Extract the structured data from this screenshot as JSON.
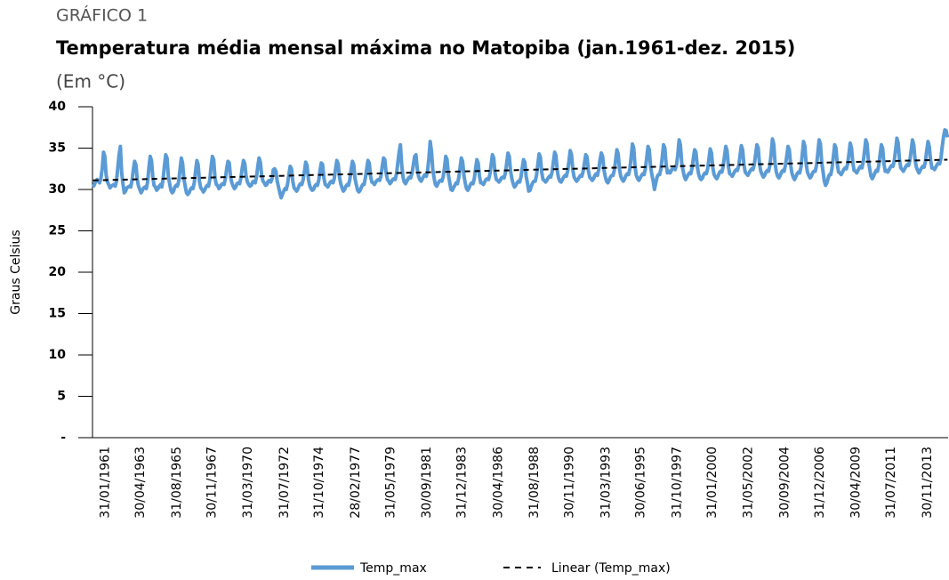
{
  "chart_data": {
    "type": "line",
    "label": "GRÁFICO 1",
    "title": "Temperatura média mensal máxima no Matopiba (jan.1961-dez. 2015)",
    "subtitle": "(Em °C)",
    "y_label": "Graus Celsius",
    "ylim": [
      0,
      40
    ],
    "yticks": [
      {
        "value": 0,
        "label": "-"
      },
      5,
      10,
      15,
      20,
      25,
      30,
      35,
      40
    ],
    "legend": "bottom",
    "categories": [
      "31/01/1961",
      null,
      null,
      null,
      null,
      null,
      null,
      null,
      null,
      null,
      null,
      null,
      null,
      null,
      null,
      null,
      null,
      null,
      null,
      null,
      null,
      null,
      null,
      null,
      null,
      null,
      null,
      "30/04/1963",
      null,
      null,
      null,
      null,
      null,
      null,
      null,
      null,
      null,
      null,
      null,
      null,
      null,
      null,
      null,
      null,
      null,
      null,
      null,
      null,
      null,
      null,
      null,
      null,
      null,
      null,
      null,
      "31/08/1965",
      null,
      null,
      null,
      null,
      null,
      null,
      null,
      null,
      null,
      null,
      null,
      null,
      null,
      null,
      null,
      null,
      null,
      null,
      null,
      null,
      null,
      null,
      null,
      null,
      null,
      null,
      "30/11/1967",
      null,
      null,
      null,
      null,
      null,
      null,
      null,
      null,
      null,
      null,
      null,
      null,
      null,
      null,
      null,
      null,
      null,
      null,
      null,
      null,
      null,
      null,
      null,
      null,
      null,
      null,
      null,
      "31/03/1970",
      null,
      null,
      null,
      null,
      null,
      null,
      null,
      null,
      null,
      null,
      null,
      null,
      null,
      null,
      null,
      null,
      null,
      null,
      null,
      null,
      null,
      null,
      null,
      null,
      null,
      null,
      null,
      "31/07/1972",
      null,
      null,
      null,
      null,
      null,
      null,
      null,
      null,
      null,
      null,
      null,
      null,
      null,
      null,
      null,
      null,
      null,
      null,
      null,
      null,
      null,
      null,
      null,
      null,
      null,
      null,
      "31/10/1974",
      null,
      null,
      null,
      null,
      null,
      null,
      null,
      null,
      null,
      null,
      null,
      null,
      null,
      null,
      null,
      null,
      null,
      null,
      null,
      null,
      null,
      null,
      null,
      null,
      null,
      null,
      null,
      "28/02/1977",
      null,
      null,
      null,
      null,
      null,
      null,
      null,
      null,
      null,
      null,
      null,
      null,
      null,
      null,
      null,
      null,
      null,
      null,
      null,
      null,
      null,
      null,
      null,
      null,
      null,
      null,
      "31/05/1979",
      null,
      null,
      null,
      null,
      null,
      null,
      null,
      null,
      null,
      null,
      null,
      null,
      null,
      null,
      null,
      null,
      null,
      null,
      null,
      null,
      null,
      null,
      null,
      null,
      null,
      null,
      null,
      "30/09/1981",
      null,
      null,
      null,
      null,
      null,
      null,
      null,
      null,
      null,
      null,
      null,
      null,
      null,
      null,
      null,
      null,
      null,
      null,
      null,
      null,
      null,
      null,
      null,
      null,
      null,
      null,
      "31/12/1983",
      null,
      null,
      null,
      null,
      null,
      null,
      null,
      null,
      null,
      null,
      null,
      null,
      null,
      null,
      null,
      null,
      null,
      null,
      null,
      null,
      null,
      null,
      null,
      null,
      null,
      null,
      null,
      "30/04/1986",
      null,
      null,
      null,
      null,
      null,
      null,
      null,
      null,
      null,
      null,
      null,
      null,
      null,
      null,
      null,
      null,
      null,
      null,
      null,
      null,
      null,
      null,
      null,
      null,
      null,
      null,
      null,
      "31/08/1988",
      null,
      null,
      null,
      null,
      null,
      null,
      null,
      null,
      null,
      null,
      null,
      null,
      null,
      null,
      null,
      null,
      null,
      null,
      null,
      null,
      null,
      null,
      null,
      null,
      null,
      null,
      "30/11/1990",
      null,
      null,
      null,
      null,
      null,
      null,
      null,
      null,
      null,
      null,
      null,
      null,
      null,
      null,
      null,
      null,
      null,
      null,
      null,
      null,
      null,
      null,
      null,
      null,
      null,
      null,
      null,
      "31/03/1993",
      null,
      null,
      null,
      null,
      null,
      null,
      null,
      null,
      null,
      null,
      null,
      null,
      null,
      null,
      null,
      null,
      null,
      null,
      null,
      null,
      null,
      null,
      null,
      null,
      null,
      null,
      "30/06/1995",
      null,
      null,
      null,
      null,
      null,
      null,
      null,
      null,
      null,
      null,
      null,
      null,
      null,
      null,
      null,
      null,
      null,
      null,
      null,
      null,
      null,
      null,
      null,
      null,
      null,
      null,
      null,
      "31/10/1997",
      null,
      null,
      null,
      null,
      null,
      null,
      null,
      null,
      null,
      null,
      null,
      null,
      null,
      null,
      null,
      null,
      null,
      null,
      null,
      null,
      null,
      null,
      null,
      null,
      null,
      null,
      "31/01/2000",
      null,
      null,
      null,
      null,
      null,
      null,
      null,
      null,
      null,
      null,
      null,
      null,
      null,
      null,
      null,
      null,
      null,
      null,
      null,
      null,
      null,
      null,
      null,
      null,
      null,
      null,
      null,
      "31/05/2002",
      null,
      null,
      null,
      null,
      null,
      null,
      null,
      null,
      null,
      null,
      null,
      null,
      null,
      null,
      null,
      null,
      null,
      null,
      null,
      null,
      null,
      null,
      null,
      null,
      null,
      null,
      null,
      "30/09/2004",
      null,
      null,
      null,
      null,
      null,
      null,
      null,
      null,
      null,
      null,
      null,
      null,
      null,
      null,
      null,
      null,
      null,
      null,
      null,
      null,
      null,
      null,
      null,
      null,
      null,
      null,
      "31/12/2006",
      null,
      null,
      null,
      null,
      null,
      null,
      null,
      null,
      null,
      null,
      null,
      null,
      null,
      null,
      null,
      null,
      null,
      null,
      null,
      null,
      null,
      null,
      null,
      null,
      null,
      null,
      null,
      "30/04/2009",
      null,
      null,
      null,
      null,
      null,
      null,
      null,
      null,
      null,
      null,
      null,
      null,
      null,
      null,
      null,
      null,
      null,
      null,
      null,
      null,
      null,
      null,
      null,
      null,
      null,
      null,
      "31/07/2011",
      null,
      null,
      null,
      null,
      null,
      null,
      null,
      null,
      null,
      null,
      null,
      null,
      null,
      null,
      null,
      null,
      null,
      null,
      null,
      null,
      null,
      null,
      null,
      null,
      null,
      null,
      null,
      "30/11/2013",
      null,
      null,
      null,
      null,
      null,
      null,
      null,
      null,
      null,
      null,
      null,
      null,
      null,
      null,
      null,
      null,
      null,
      null,
      null,
      null,
      null,
      null,
      null,
      null,
      null
    ],
    "series": [
      {
        "name": "Temp_max",
        "color": "#5b9bd5",
        "values": [
          30.3,
          30.6,
          31.0,
          31.2,
          31.0,
          30.8,
          31.4,
          32.5,
          34.5,
          34.0,
          31.8,
          30.9,
          30.6,
          30.2,
          30.4,
          30.5,
          30.6,
          30.4,
          31.0,
          32.6,
          34.2,
          35.2,
          32.0,
          30.7,
          29.6,
          29.8,
          30.2,
          30.3,
          30.4,
          30.3,
          31.1,
          32.4,
          33.4,
          33.0,
          31.2,
          30.4,
          30.0,
          29.6,
          29.9,
          30.2,
          30.3,
          30.1,
          30.9,
          32.6,
          34.0,
          33.5,
          31.5,
          30.5,
          30.3,
          29.9,
          30.1,
          30.4,
          30.6,
          30.3,
          31.3,
          32.9,
          34.2,
          33.8,
          31.6,
          30.7,
          29.9,
          29.6,
          29.8,
          30.3,
          30.5,
          30.4,
          31.0,
          32.4,
          33.8,
          33.2,
          31.3,
          30.4,
          29.6,
          29.4,
          29.6,
          30.0,
          30.2,
          30.1,
          30.8,
          32.2,
          33.5,
          33.0,
          31.0,
          30.2,
          30.0,
          29.7,
          29.9,
          30.3,
          30.5,
          30.4,
          31.2,
          32.8,
          34.0,
          33.6,
          31.4,
          30.6,
          30.5,
          30.1,
          30.3,
          30.6,
          30.7,
          30.6,
          31.3,
          32.5,
          33.4,
          33.2,
          31.5,
          30.8,
          30.4,
          30.1,
          30.3,
          30.7,
          30.8,
          30.7,
          31.4,
          32.6,
          33.5,
          33.1,
          31.6,
          30.9,
          30.6,
          30.4,
          30.5,
          30.9,
          31.0,
          30.8,
          31.5,
          32.8,
          33.8,
          33.3,
          31.7,
          31.0,
          30.8,
          30.5,
          30.6,
          31.0,
          31.1,
          30.9,
          31.3,
          32.4,
          32.5,
          32.2,
          31.0,
          30.3,
          29.6,
          29.0,
          29.4,
          29.8,
          30.1,
          30.0,
          30.7,
          31.8,
          32.8,
          32.5,
          31.0,
          30.2,
          30.0,
          29.8,
          30.1,
          30.5,
          30.7,
          30.6,
          31.2,
          32.2,
          33.3,
          32.9,
          31.3,
          30.5,
          30.1,
          29.9,
          30.0,
          30.4,
          30.6,
          30.5,
          31.1,
          32.3,
          33.2,
          33.0,
          31.4,
          30.6,
          30.5,
          30.3,
          30.6,
          30.9,
          31.0,
          30.8,
          31.3,
          32.5,
          33.5,
          33.1,
          31.5,
          30.7,
          30.2,
          29.8,
          30.0,
          30.4,
          30.6,
          30.5,
          31.2,
          32.4,
          33.4,
          33.0,
          31.3,
          30.6,
          29.9,
          29.7,
          29.9,
          30.3,
          30.6,
          30.6,
          31.4,
          32.5,
          33.5,
          33.2,
          31.6,
          30.9,
          30.8,
          30.6,
          30.9,
          31.1,
          31.2,
          31.1,
          31.6,
          32.8,
          33.8,
          33.6,
          32.0,
          31.2,
          31.0,
          30.7,
          30.9,
          31.2,
          31.3,
          31.2,
          31.9,
          33.2,
          34.5,
          35.4,
          33.0,
          31.5,
          30.9,
          30.7,
          31.0,
          31.3,
          31.5,
          31.4,
          32.0,
          33.0,
          34.0,
          34.2,
          32.5,
          31.6,
          31.2,
          31.0,
          31.3,
          31.6,
          31.8,
          31.6,
          32.3,
          33.8,
          35.8,
          34.6,
          32.4,
          31.4,
          30.6,
          30.4,
          30.7,
          31.0,
          31.1,
          31.0,
          31.5,
          32.6,
          34.0,
          33.6,
          31.8,
          30.9,
          30.0,
          29.9,
          30.2,
          30.5,
          30.8,
          30.7,
          31.4,
          32.6,
          33.8,
          33.4,
          31.7,
          30.8,
          30.1,
          29.9,
          30.2,
          30.6,
          30.8,
          30.7,
          31.3,
          32.5,
          33.6,
          33.2,
          31.6,
          30.8,
          30.8,
          30.6,
          30.9,
          31.2,
          31.3,
          31.2,
          31.8,
          33.0,
          34.2,
          33.8,
          32.0,
          31.2,
          31.1,
          30.9,
          31.1,
          31.4,
          31.5,
          31.4,
          32.0,
          33.2,
          34.4,
          34.0,
          32.2,
          31.3,
          30.7,
          30.3,
          30.5,
          30.8,
          31.0,
          30.9,
          31.5,
          32.6,
          33.6,
          33.3,
          31.6,
          30.8,
          29.8,
          29.9,
          30.4,
          30.8,
          31.0,
          31.0,
          31.7,
          33.0,
          34.3,
          33.9,
          32.1,
          31.2,
          31.1,
          30.9,
          31.1,
          31.4,
          31.6,
          31.5,
          32.1,
          33.3,
          34.5,
          34.1,
          32.3,
          31.4,
          31.0,
          30.9,
          31.2,
          31.5,
          31.7,
          31.6,
          32.2,
          33.4,
          34.7,
          34.2,
          32.4,
          31.5,
          31.2,
          31.0,
          31.2,
          31.5,
          31.7,
          31.6,
          32.2,
          33.2,
          34.2,
          33.9,
          32.3,
          31.5,
          31.3,
          31.1,
          31.3,
          31.7,
          31.9,
          31.7,
          32.4,
          33.6,
          34.4,
          34.0,
          32.4,
          31.6,
          31.0,
          30.8,
          31.1,
          31.5,
          31.7,
          31.7,
          32.3,
          33.5,
          34.8,
          34.3,
          32.5,
          31.6,
          31.2,
          31.0,
          31.3,
          31.7,
          31.9,
          31.8,
          32.5,
          33.9,
          35.5,
          35.0,
          32.8,
          31.7,
          31.3,
          31.1,
          31.4,
          31.7,
          31.9,
          31.8,
          32.5,
          33.8,
          35.2,
          34.8,
          32.7,
          31.8,
          31.0,
          30.0,
          30.8,
          31.5,
          31.8,
          31.8,
          32.5,
          33.9,
          35.4,
          35.0,
          33.0,
          32.0,
          32.2,
          32.0,
          32.3,
          32.5,
          32.6,
          32.4,
          33.0,
          34.2,
          36.0,
          35.4,
          33.2,
          32.3,
          31.6,
          31.2,
          31.5,
          31.8,
          32.0,
          31.9,
          32.6,
          33.8,
          34.8,
          34.5,
          32.8,
          31.9,
          31.4,
          31.2,
          31.4,
          31.8,
          32.0,
          31.9,
          32.5,
          33.7,
          34.9,
          34.4,
          32.6,
          31.8,
          31.5,
          31.3,
          31.6,
          32.0,
          32.2,
          32.1,
          32.8,
          34.0,
          35.2,
          34.7,
          32.8,
          31.9,
          31.8,
          31.6,
          31.9,
          32.2,
          32.4,
          32.3,
          32.9,
          34.1,
          35.3,
          34.8,
          33.0,
          32.1,
          31.9,
          31.7,
          32.0,
          32.3,
          32.5,
          32.4,
          33.0,
          34.2,
          35.4,
          35.0,
          33.1,
          32.2,
          31.8,
          31.5,
          31.7,
          32.1,
          32.3,
          32.2,
          32.9,
          34.3,
          36.1,
          35.5,
          33.2,
          32.1,
          31.6,
          31.4,
          31.7,
          32.1,
          32.3,
          32.2,
          32.9,
          34.0,
          35.2,
          34.8,
          33.0,
          32.0,
          31.5,
          31.2,
          31.5,
          31.9,
          32.1,
          32.0,
          32.7,
          34.2,
          35.8,
          35.2,
          33.1,
          32.1,
          31.7,
          31.4,
          31.6,
          32.0,
          32.2,
          32.2,
          32.9,
          34.4,
          36.0,
          35.5,
          33.3,
          32.2,
          31.0,
          30.5,
          30.8,
          31.4,
          31.8,
          31.8,
          32.6,
          34.0,
          35.4,
          35.0,
          33.1,
          32.1,
          32.0,
          31.8,
          32.1,
          32.4,
          32.6,
          32.5,
          33.1,
          34.3,
          35.6,
          35.0,
          33.2,
          32.3,
          32.2,
          32.0,
          32.3,
          32.6,
          32.8,
          32.6,
          33.3,
          34.6,
          36.0,
          35.5,
          33.5,
          32.5,
          31.6,
          31.3,
          31.6,
          32.0,
          32.3,
          32.2,
          32.9,
          34.2,
          35.4,
          35.0,
          33.1,
          32.2,
          32.3,
          32.1,
          32.4,
          32.7,
          32.9,
          32.8,
          33.5,
          34.8,
          36.2,
          35.6,
          33.6,
          32.6,
          32.4,
          32.2,
          32.5,
          32.8,
          33.0,
          32.9,
          33.5,
          34.7,
          36.0,
          35.4,
          33.6,
          32.7,
          32.3,
          32.0,
          32.3,
          32.6,
          32.8,
          32.7,
          33.4,
          34.7,
          35.8,
          35.2,
          33.5,
          32.6,
          32.6,
          32.4,
          32.7,
          33.0,
          33.2,
          33.1,
          33.8,
          35.2,
          36.4,
          37.2,
          37.1,
          36.3
        ]
      }
    ],
    "trendline": {
      "name": "Linear (Temp_max)",
      "color": "#000000",
      "values": [
        31.1,
        33.6
      ]
    }
  }
}
